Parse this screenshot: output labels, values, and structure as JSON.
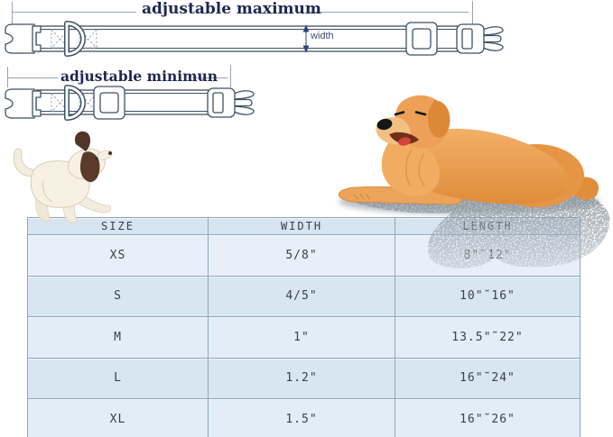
{
  "page": {
    "background": "#ffffff"
  },
  "diagram": {
    "max_label": "adjustable maximum",
    "min_label": "adjustable minimun",
    "width_label": "width",
    "label_color": "#1d2750",
    "line_color": "#3e5065",
    "dimension_line_color": "#97a2b4",
    "arrow_color": "#2e4170"
  },
  "illustrations": {
    "large_dog": "golden retriever lying down",
    "small_dog": "white puppy with brown ears walking",
    "dog_main_color": "#ed9f52",
    "dog_dark_color": "#d9812f",
    "puppy_color": "#f3eddd",
    "shadow_color": "#8d97a1"
  },
  "size_chart": {
    "columns": [
      "SIZE",
      "WIDTH",
      "LENGTH"
    ],
    "rows": [
      {
        "size": "XS",
        "width": "5/8\"",
        "length": "8\"˜12\""
      },
      {
        "size": "S",
        "width": "4/5\"",
        "length": "10\"˜16\""
      },
      {
        "size": "M",
        "width": "1\"",
        "length": "13.5\"˜22\""
      },
      {
        "size": "L",
        "width": "1.2\"",
        "length": "16\"˜24\""
      },
      {
        "size": "XL",
        "width": "1.5\"",
        "length": "16\"˜26\""
      }
    ],
    "header_bg": "#d7e5f1",
    "row_bg_light": "#e2edf7",
    "row_bg_dark": "#d8e6f2",
    "border_color": "#8fa6b8",
    "text_color": "#3b4046"
  }
}
